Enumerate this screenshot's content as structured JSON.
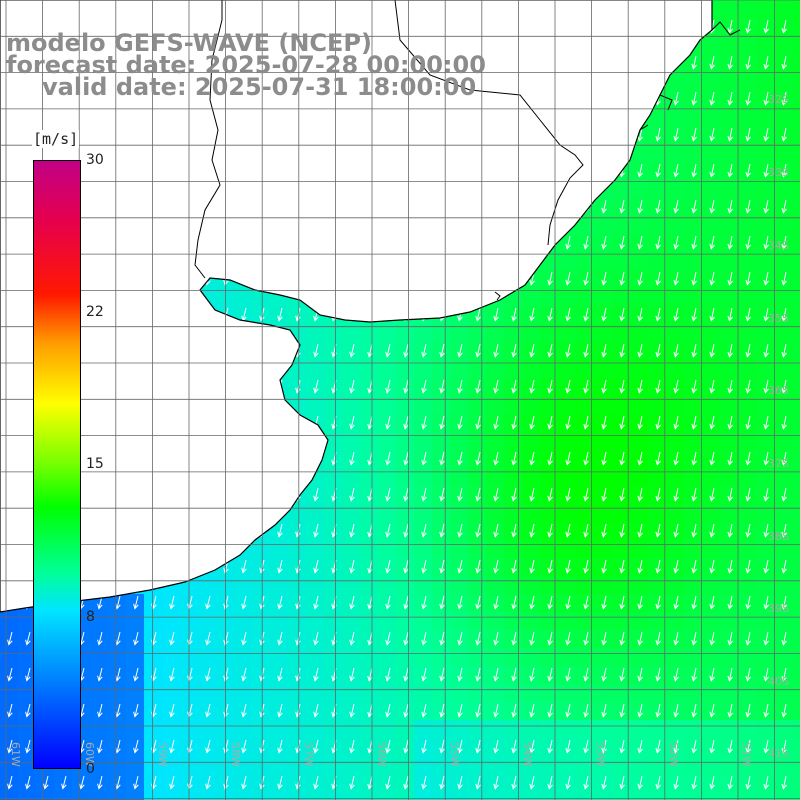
{
  "title": {
    "line1": "modelo GEFS-WAVE (NCEP)",
    "line2": "forecast date: 2025-07-28 00:00:00",
    "line3": "valid date: 2025-07-31 18:00:00"
  },
  "colorbar": {
    "unit": "[m/s]",
    "ticks": [
      "30",
      "22",
      "15",
      "8",
      "0"
    ],
    "tick_values": [
      30,
      22,
      15,
      8,
      0
    ],
    "min": 0,
    "max": 30,
    "colors": {
      "low": "#0000ff",
      "mid_low": "#00e5ff",
      "mid": "#00ff00",
      "high_mid": "#ffff00",
      "high": "#ff1900",
      "max": "#c20087"
    }
  },
  "map": {
    "latitude_labels": [
      "32S",
      "33S",
      "34S",
      "35S",
      "36S",
      "37S",
      "38S",
      "39S",
      "40S",
      "41S"
    ],
    "longitude_labels": [
      "61W",
      "60W",
      "59W",
      "58W",
      "57W",
      "56W",
      "55W",
      "54W",
      "53W",
      "52W",
      "51W"
    ],
    "land_color": "#ffffff",
    "grid_color": "#606060",
    "arrow_color": "#ffffff",
    "wind_direction": "from north-northeast toward south-southwest",
    "speed_range_ms": [
      7,
      14
    ]
  }
}
